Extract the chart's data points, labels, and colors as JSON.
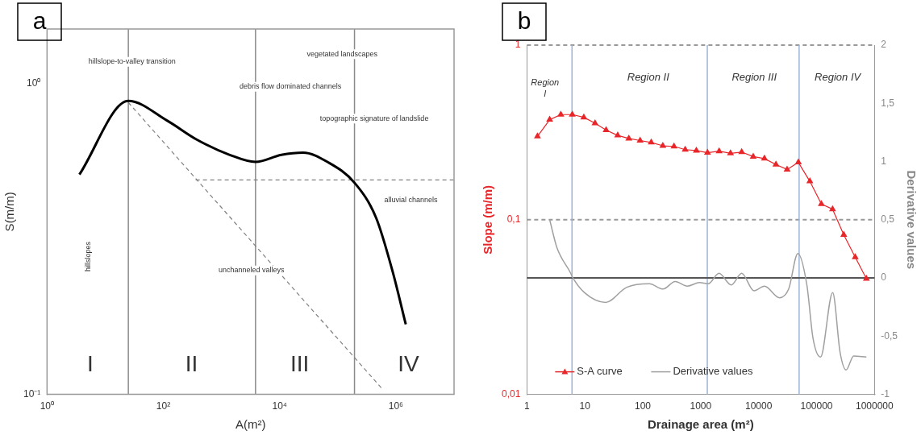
{
  "chart_data": [
    {
      "type": "line",
      "title": "a",
      "xlabel": "A(m²)",
      "ylabel": "S(m/m)",
      "log": "xy",
      "grid": false,
      "marker": "none",
      "xlim": [
        1,
        10000000
      ],
      "ylim": [
        0.1,
        1.5
      ],
      "xticks": [
        {
          "value": 1,
          "label": "10⁰"
        },
        {
          "value": 100,
          "label": "10²"
        },
        {
          "value": 10000,
          "label": "10⁴"
        },
        {
          "value": 1000000,
          "label": "10⁶"
        }
      ],
      "yticks": [
        {
          "value": 0.1,
          "label": "10⁻¹"
        },
        {
          "value": 1,
          "label": "10⁰"
        }
      ],
      "series": [
        {
          "color": "#000000",
          "line_style": "solid",
          "x": [
            3.6,
            25,
            117,
            380,
            1390,
            3850,
            10700,
            25300,
            66500,
            194000,
            457000,
            871000,
            1480000
          ],
          "values": [
            0.51,
            0.88,
            0.76,
            0.66,
            0.59,
            0.56,
            0.59,
            0.6,
            0.56,
            0.48,
            0.37,
            0.25,
            0.168
          ]
        },
        {
          "color": "#808080",
          "line_style": "dashed",
          "x": [
            25,
            560000
          ],
          "values": [
            0.87,
            0.105
          ]
        },
        {
          "color": "#808080",
          "line_style": "dashed",
          "x": [
            360,
            10000000
          ],
          "values": [
            0.49,
            0.49
          ]
        }
      ],
      "ref_lines": [
        {
          "axis": "x",
          "value": 25,
          "color": "#8a8a8a"
        },
        {
          "axis": "x",
          "value": 3850,
          "color": "#8a8a8a"
        },
        {
          "axis": "x",
          "value": 194000,
          "color": "#8a8a8a"
        }
      ],
      "annotations": [
        "hillslope-to-valley transition",
        "vegetated landscapes",
        "debris flow dominated channels",
        "topographic signature of landslide",
        "alluvial channels",
        "unchanneled valleys",
        "hillslopes",
        "I",
        "II",
        "III",
        "IV"
      ]
    },
    {
      "type": "line",
      "title": "b",
      "xlabel": "Drainage area (m²)",
      "ylabel": "Slope (m/m)",
      "y2label": "Derivative values",
      "log": "xy",
      "legend": "bottom left",
      "xlim": [
        1,
        1000000
      ],
      "ylim": [
        0.01,
        1
      ],
      "y2lim": [
        -1,
        2
      ],
      "xticks": [
        1,
        10,
        100,
        1000,
        10000,
        100000,
        1000000
      ],
      "yticks": [
        {
          "value": 0.01,
          "label": "0,01"
        },
        {
          "value": 0.1,
          "label": "0,1"
        },
        1
      ],
      "y2ticks": [
        -1,
        {
          "value": -0.5,
          "label": "-0,5"
        },
        0,
        {
          "value": 0.5,
          "label": "0,5"
        },
        1,
        {
          "value": 1.5,
          "label": "1,5"
        },
        2
      ],
      "series": [
        {
          "name": "S-A curve",
          "color": "#e8262a",
          "marker": "triangle",
          "x": [
            1.52,
            2.47,
            3.85,
            6.07,
            9.6,
            15,
            23.3,
            36.9,
            57.5,
            90,
            140,
            222,
            346,
            540,
            842,
            1310,
            2080,
            3270,
            5100,
            8070,
            12600,
            19900,
            31000,
            48500,
            76600,
            121000,
            189000,
            295000,
            465000,
            725000
          ],
          "values": [
            0.3,
            0.374,
            0.4,
            0.4,
            0.386,
            0.357,
            0.326,
            0.304,
            0.292,
            0.284,
            0.277,
            0.265,
            0.263,
            0.252,
            0.249,
            0.242,
            0.247,
            0.24,
            0.244,
            0.23,
            0.224,
            0.207,
            0.194,
            0.213,
            0.166,
            0.123,
            0.115,
            0.082,
            0.061,
            0.046
          ]
        },
        {
          "name": "Derivative values",
          "color": "#a0a0a0",
          "marker": "none",
          "axis": "y2",
          "x": [
            2.47,
            3.3,
            5.7,
            6.07,
            9.8,
            22.8,
            53,
            130,
            224,
            363,
            589,
            952,
            1350,
            2070,
            3360,
            5100,
            8300,
            12600,
            23000,
            33000,
            47500,
            68000,
            87000,
            117000,
            190000,
            255000,
            324000,
            437000,
            725000
          ],
          "values": [
            0.5,
            0.26,
            0.04,
            0.01,
            -0.125,
            -0.21,
            -0.08,
            -0.05,
            -0.095,
            -0.03,
            -0.07,
            -0.04,
            -0.05,
            0.04,
            -0.06,
            0.04,
            -0.11,
            -0.07,
            -0.17,
            -0.095,
            0.21,
            -0.06,
            -0.52,
            -0.68,
            -0.125,
            -0.64,
            -0.79,
            -0.67,
            -0.68
          ]
        }
      ],
      "ref_lines": [
        {
          "axis": "y",
          "value": 1,
          "color": "#999999",
          "line_style": "dashed"
        },
        {
          "axis": "y",
          "value": 0.1,
          "color": "#999999",
          "line_style": "dashed"
        },
        {
          "axis": "x",
          "value": 6,
          "color": "#9db3d6"
        },
        {
          "axis": "x",
          "value": 1300,
          "color": "#9db3d6"
        },
        {
          "axis": "x",
          "value": 50000,
          "color": "#9db3d6"
        },
        {
          "axis": "y2",
          "value": 0,
          "color": "#555555"
        }
      ],
      "annotations": [
        "Region I",
        "Region II",
        "Region III",
        "Region IV"
      ]
    }
  ]
}
